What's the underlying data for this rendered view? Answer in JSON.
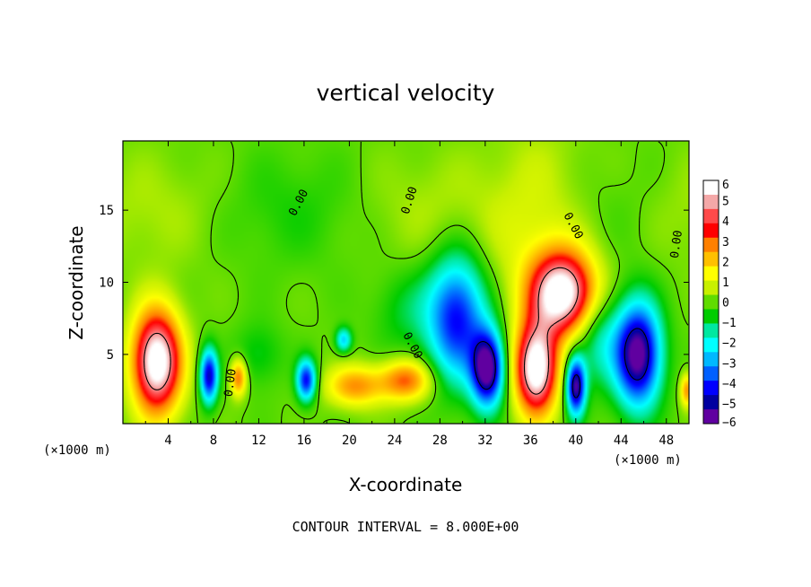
{
  "chart_data": {
    "type": "heatmap",
    "title": "vertical velocity",
    "xlabel": "X-coordinate",
    "ylabel": "Z-coordinate",
    "x_unit": "(×1000 m)",
    "x_ticks": [
      4,
      8,
      12,
      16,
      20,
      24,
      28,
      32,
      36,
      40,
      44,
      48
    ],
    "y_ticks": [
      5,
      10,
      15
    ],
    "xlim": [
      0,
      50
    ],
    "ylim": [
      0.2,
      19.8
    ],
    "colorbar": {
      "ticks": [
        6,
        5,
        4,
        3,
        2,
        1,
        0,
        -1,
        -2,
        -3,
        -4,
        -5,
        -6
      ],
      "labels": [
        "6",
        "5",
        "4",
        "3",
        "2",
        "1",
        "0",
        "−1",
        "−2",
        "−3",
        "−4",
        "−5",
        "−6"
      ],
      "colors": [
        "#ffffff",
        "#f4a8a8",
        "#ff4a4a",
        "#ff0000",
        "#ff8000",
        "#ffc000",
        "#ffff00",
        "#c8f000",
        "#60dc00",
        "#00cc00",
        "#00e8a0",
        "#00ffff",
        "#00b8ff",
        "#0060ff",
        "#0000ff",
        "#0000a0",
        "#6000a0"
      ]
    },
    "features": [
      {
        "x": 3,
        "z": 4.5,
        "sx": 1.5,
        "sz": 2.5,
        "w": 7.5
      },
      {
        "x": 7.6,
        "z": 3.5,
        "sx": 0.55,
        "sz": 1.3,
        "w": -5.5
      },
      {
        "x": 10.2,
        "z": 3.4,
        "sx": 0.5,
        "sz": 0.9,
        "w": 3.5
      },
      {
        "x": 16.2,
        "z": 3.2,
        "sx": 0.6,
        "sz": 1.0,
        "w": -5
      },
      {
        "x": 20.5,
        "z": 2.8,
        "sx": 1.8,
        "sz": 1.0,
        "w": 3
      },
      {
        "x": 19.5,
        "z": 6,
        "sx": 0.5,
        "sz": 0.6,
        "w": -3
      },
      {
        "x": 25,
        "z": 3.2,
        "sx": 1.6,
        "sz": 1.0,
        "w": 3.5
      },
      {
        "x": 29.5,
        "z": 7.5,
        "sx": 1.8,
        "sz": 3.0,
        "w": -5
      },
      {
        "x": 32.2,
        "z": 4,
        "sx": 1.0,
        "sz": 1.8,
        "w": -7
      },
      {
        "x": 36.5,
        "z": 4,
        "sx": 1.3,
        "sz": 2.2,
        "w": 7.5
      },
      {
        "x": 38.8,
        "z": 9.2,
        "sx": 2.0,
        "sz": 2.0,
        "w": 7
      },
      {
        "x": 37,
        "z": 14,
        "sx": 3.5,
        "sz": 4.5,
        "w": 1.5
      },
      {
        "x": 40,
        "z": 2.8,
        "sx": 0.6,
        "sz": 1.4,
        "w": -6.5
      },
      {
        "x": 42,
        "z": 6,
        "sx": 1.5,
        "sz": 2.2,
        "w": -2
      },
      {
        "x": 45.5,
        "z": 5,
        "sx": 1.4,
        "sz": 2.5,
        "w": -7
      },
      {
        "x": 49.8,
        "z": 2.5,
        "sx": 0.4,
        "sz": 0.8,
        "w": 3
      },
      {
        "x": 25,
        "z": 8,
        "sx": 2.0,
        "sz": 2.0,
        "w": -1
      },
      {
        "x": 12,
        "z": 5,
        "sx": 1.5,
        "sz": 1.5,
        "w": -1
      }
    ],
    "contour_labels": [
      {
        "text": "0.00",
        "x": 15.8,
        "z": 15.4,
        "angle": -62
      },
      {
        "text": "0.00",
        "x": 25.6,
        "z": 15.6,
        "angle": -72
      },
      {
        "text": "0.00",
        "x": 39.5,
        "z": 13.8,
        "angle": 62
      },
      {
        "text": "0.00",
        "x": 49.2,
        "z": 12.6,
        "angle": -82
      },
      {
        "text": "0.00",
        "x": 9.8,
        "z": 3.0,
        "angle": -82
      },
      {
        "text": "0.00",
        "x": 25.3,
        "z": 5.5,
        "angle": 62
      }
    ]
  },
  "footer": {
    "contour_interval": "CONTOUR INTERVAL = 8.000E+00"
  }
}
